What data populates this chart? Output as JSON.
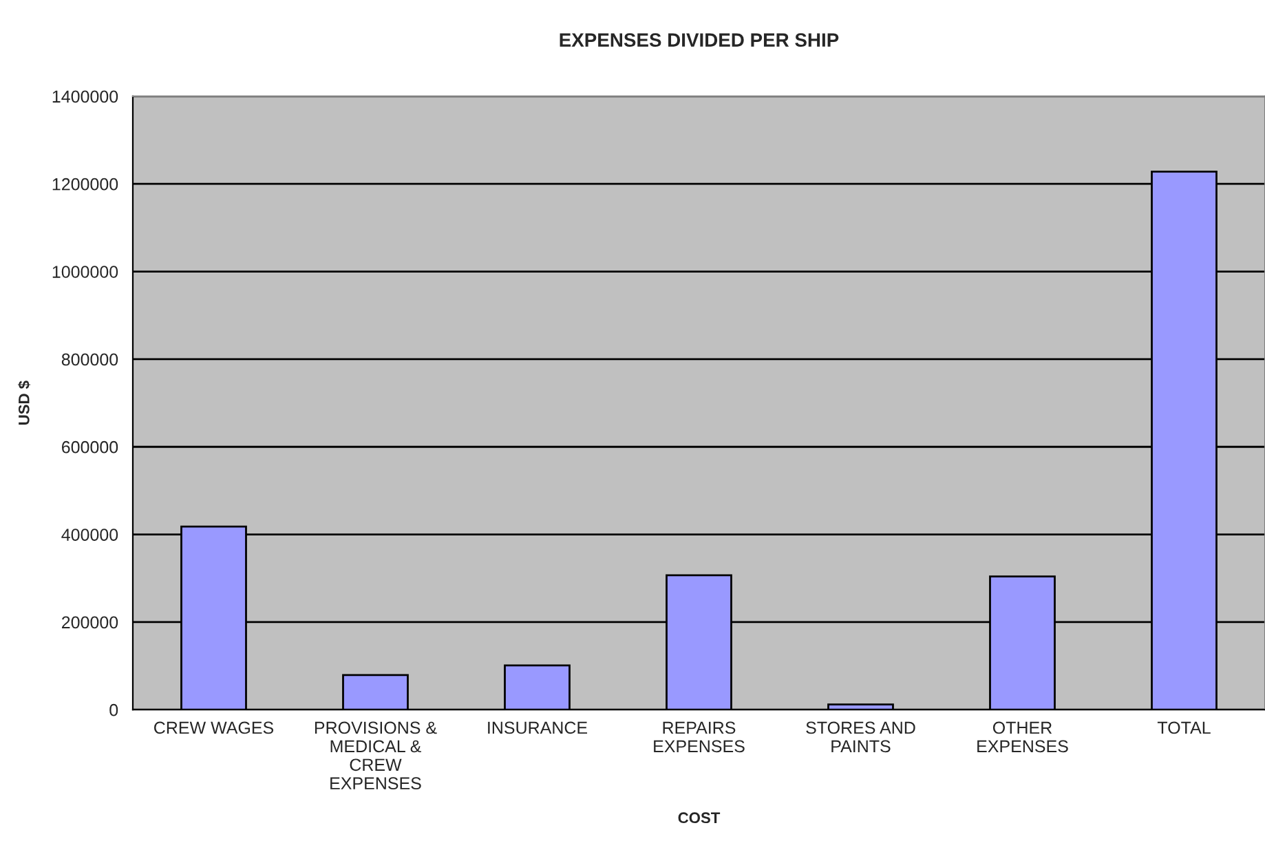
{
  "chart_data": {
    "type": "bar",
    "title": "EXPENSES DIVIDED PER SHIP",
    "xlabel": "COST",
    "ylabel": "USD $",
    "categories": [
      "CREW WAGES",
      "PROVISIONS &\nMEDICAL &\nCREW\nEXPENSES",
      "INSURANCE",
      "REPAIRS\nEXPENSES",
      "STORES AND\nPAINTS",
      "OTHER\nEXPENSES",
      "TOTAL"
    ],
    "values": [
      418000,
      79000,
      101000,
      307000,
      12000,
      304000,
      1228000
    ],
    "color": "#9999ff",
    "ylim": [
      0,
      1400000
    ],
    "yticks": [
      0,
      200000,
      400000,
      600000,
      800000,
      1000000,
      1200000,
      1400000
    ],
    "grid": "y",
    "legend": false
  }
}
